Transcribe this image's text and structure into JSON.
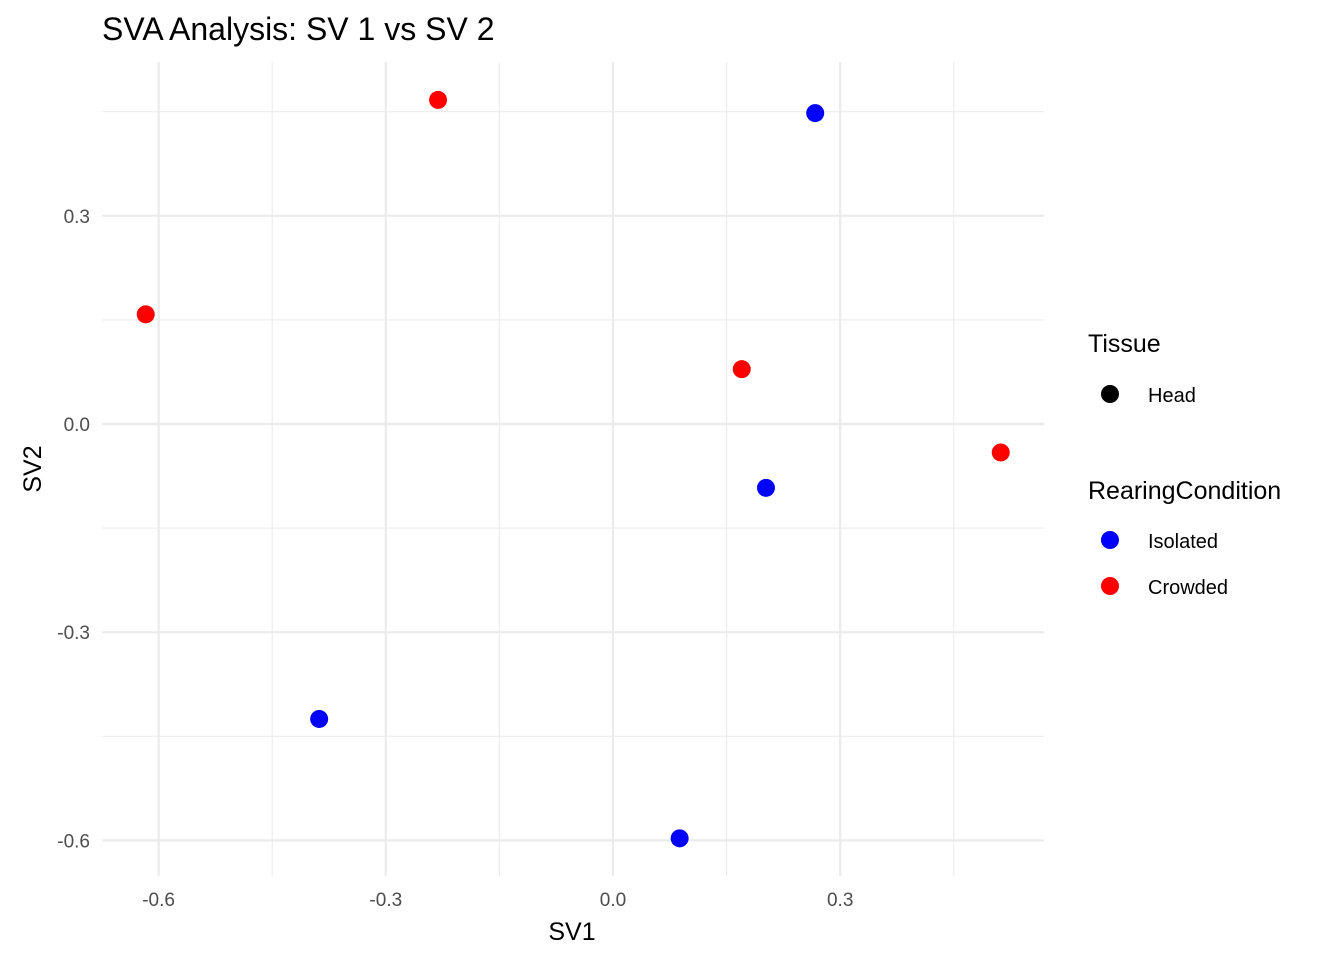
{
  "chart_data": {
    "type": "scatter",
    "title": "SVA Analysis: SV 1  vs SV 2",
    "xlabel": "SV1",
    "ylabel": "SV2",
    "xlim": [
      -0.66,
      0.57
    ],
    "ylim": [
      -0.65,
      0.5
    ],
    "x_ticks": [
      -0.6,
      -0.3,
      0.0,
      0.3
    ],
    "x_tick_labels": [
      "-0.6",
      "-0.3",
      "0.0",
      "0.3"
    ],
    "y_ticks": [
      -0.6,
      -0.3,
      0.0,
      0.3
    ],
    "y_tick_labels": [
      "-0.6",
      "-0.3",
      "0.0",
      "0.3"
    ],
    "grid": true,
    "legend_position": "right",
    "legends": [
      {
        "title": "Tissue",
        "entries": [
          {
            "label": "Head",
            "color": "#000000"
          }
        ]
      },
      {
        "title": "RearingCondition",
        "entries": [
          {
            "label": "Isolated",
            "color": "#0000FF"
          },
          {
            "label": "Crowded",
            "color": "#FF0000"
          }
        ]
      }
    ],
    "series": [
      {
        "name": "Isolated",
        "color": "#0000FF",
        "points": [
          {
            "x": 0.267,
            "y": 0.448
          },
          {
            "x": 0.202,
            "y": -0.092
          },
          {
            "x": -0.388,
            "y": -0.425
          },
          {
            "x": 0.088,
            "y": -0.597
          }
        ]
      },
      {
        "name": "Crowded",
        "color": "#FF0000",
        "points": [
          {
            "x": -0.231,
            "y": 0.467
          },
          {
            "x": -0.617,
            "y": 0.158
          },
          {
            "x": 0.17,
            "y": 0.079
          },
          {
            "x": 0.512,
            "y": -0.041
          }
        ]
      }
    ]
  }
}
